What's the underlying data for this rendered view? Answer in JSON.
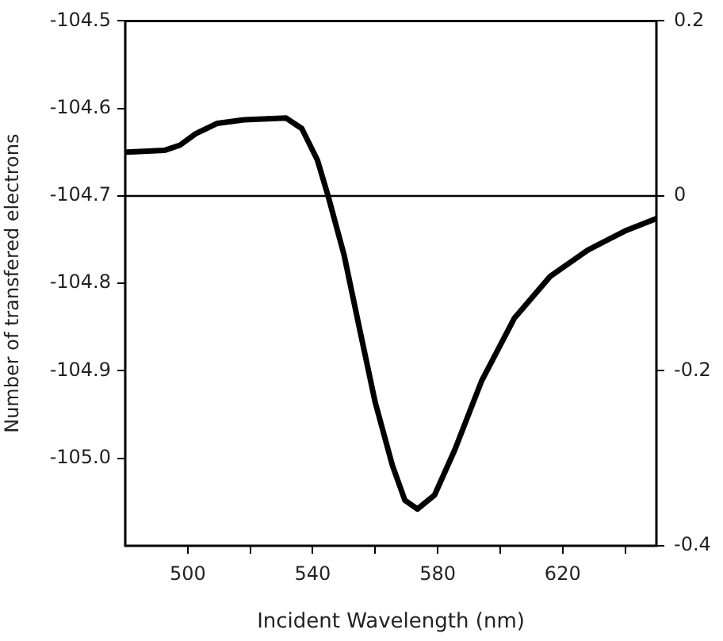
{
  "chart_data": {
    "type": "line",
    "xlabel": "Incident Wavelength (nm)",
    "ylabel": "Number of transfered electrons",
    "x": [
      480.5,
      492.5,
      497.5,
      502.5,
      509.5,
      518,
      531.5,
      536.5,
      541.5,
      545,
      550,
      555,
      560,
      565.5,
      569.5,
      573.5,
      579,
      585.5,
      594,
      604.5,
      616,
      628,
      640,
      650
    ],
    "series": [
      {
        "color": "#000000",
        "values": [
          -104.65,
          -104.648,
          -104.642,
          -104.629,
          -104.617,
          -104.613,
          -104.611,
          -104.623,
          -104.659,
          -104.701,
          -104.767,
          -104.852,
          -104.936,
          -105.008,
          -105.048,
          -105.058,
          -105.042,
          -104.99,
          -104.912,
          -104.84,
          -104.792,
          -104.762,
          -104.74,
          -104.726
        ]
      }
    ],
    "xlim": [
      480,
      650
    ],
    "xticks": [
      500,
      {
        "value": 520,
        "label": null
      },
      540,
      {
        "value": 560,
        "label": null
      },
      580,
      {
        "value": 600,
        "label": null
      },
      620,
      {
        "value": 640,
        "label": null
      }
    ],
    "ylim": [
      -105.1,
      -104.5
    ],
    "yticks": [
      -104.5,
      -104.6,
      -104.7,
      -104.8,
      -104.9,
      {
        "value": -105,
        "label": "-105.0"
      }
    ],
    "y2lim": [
      -0.4,
      0.2
    ],
    "y2ticks": [
      -0.4,
      -0.2,
      0,
      0.2
    ],
    "ref_lines": [
      {
        "axis": "y2",
        "value": 0,
        "color": "#000000"
      }
    ],
    "grid": false,
    "legend": false,
    "marker": "none",
    "line_style": "solid"
  }
}
